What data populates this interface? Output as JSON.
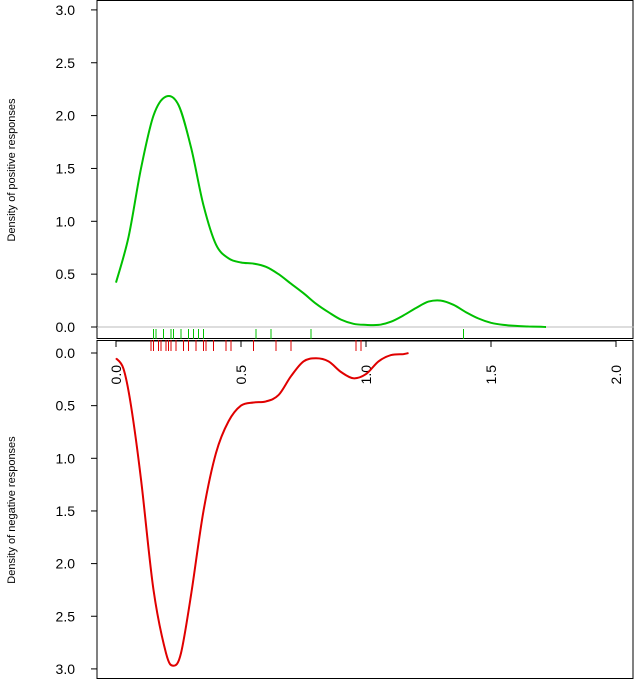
{
  "chart_data": [
    {
      "type": "line",
      "panel": "top",
      "ylabel": "Density of positive responses",
      "ylim": [
        0,
        3.0
      ],
      "yticks": [
        "0.0",
        "0.5",
        "1.0",
        "1.5",
        "2.0",
        "2.5",
        "3.0"
      ],
      "series": [
        {
          "color": "#00c000",
          "x": [
            0.0,
            0.05,
            0.1,
            0.15,
            0.2,
            0.25,
            0.3,
            0.35,
            0.4,
            0.45,
            0.5,
            0.55,
            0.6,
            0.65,
            0.7,
            0.75,
            0.8,
            0.85,
            0.9,
            0.95,
            1.0,
            1.05,
            1.1,
            1.15,
            1.2,
            1.25,
            1.3,
            1.35,
            1.4,
            1.45,
            1.5,
            1.55,
            1.6,
            1.65,
            1.7,
            1.72
          ],
          "y": [
            0.42,
            0.85,
            1.5,
            2.0,
            2.18,
            2.1,
            1.7,
            1.15,
            0.78,
            0.65,
            0.61,
            0.6,
            0.57,
            0.5,
            0.41,
            0.32,
            0.22,
            0.14,
            0.07,
            0.03,
            0.02,
            0.02,
            0.05,
            0.11,
            0.18,
            0.24,
            0.25,
            0.21,
            0.14,
            0.08,
            0.04,
            0.02,
            0.01,
            0.005,
            0.002,
            0.0
          ]
        }
      ],
      "rug": [
        0.15,
        0.16,
        0.19,
        0.22,
        0.23,
        0.26,
        0.29,
        0.31,
        0.33,
        0.35,
        0.56,
        0.62,
        0.78,
        1.39
      ]
    },
    {
      "type": "line",
      "panel": "bottom",
      "ylabel": "Density of negative responses",
      "ylim": [
        0,
        3.0
      ],
      "yticks": [
        "0.0",
        "0.5",
        "1.0",
        "1.5",
        "2.0",
        "2.5",
        "3.0"
      ],
      "xlim": [
        0,
        2.0
      ],
      "xticks": [
        "0.0",
        "0.5",
        "1.0",
        "1.5",
        "2.0"
      ],
      "series": [
        {
          "color": "#e00000",
          "x": [
            0.0,
            0.03,
            0.06,
            0.1,
            0.15,
            0.2,
            0.23,
            0.26,
            0.3,
            0.35,
            0.4,
            0.45,
            0.5,
            0.55,
            0.6,
            0.65,
            0.7,
            0.75,
            0.8,
            0.85,
            0.9,
            0.95,
            1.0,
            1.05,
            1.1,
            1.15,
            1.17
          ],
          "y": [
            0.05,
            0.15,
            0.5,
            1.2,
            2.25,
            2.85,
            2.97,
            2.85,
            2.3,
            1.5,
            0.95,
            0.65,
            0.5,
            0.47,
            0.46,
            0.4,
            0.22,
            0.08,
            0.05,
            0.08,
            0.18,
            0.24,
            0.2,
            0.08,
            0.02,
            0.01,
            0.0
          ]
        }
      ],
      "rug": [
        0.14,
        0.15,
        0.17,
        0.18,
        0.2,
        0.21,
        0.22,
        0.24,
        0.27,
        0.29,
        0.32,
        0.35,
        0.36,
        0.39,
        0.44,
        0.46,
        0.55,
        0.64,
        0.7,
        0.96,
        0.98
      ]
    }
  ]
}
